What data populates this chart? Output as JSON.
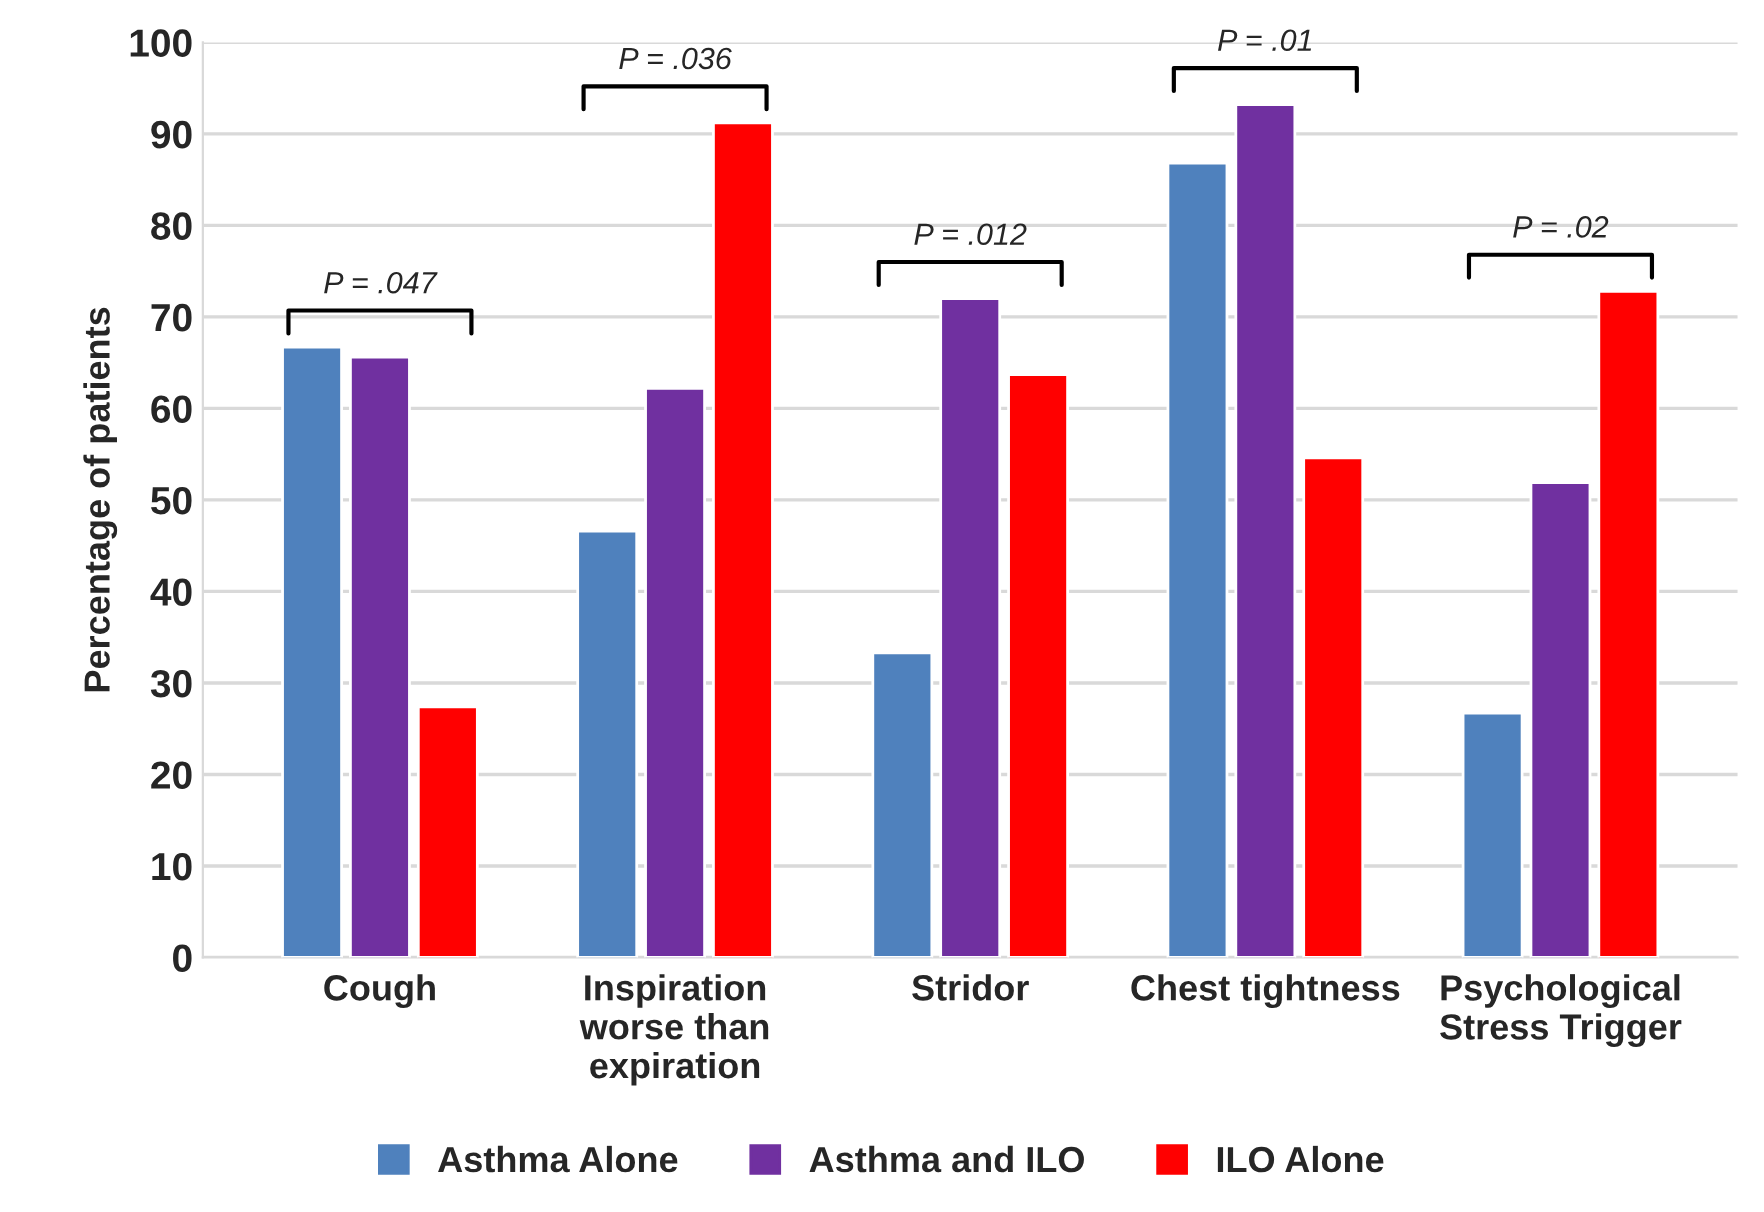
{
  "chart_data": {
    "type": "bar",
    "ylabel": "Percentage of patients",
    "categories": [
      "Cough",
      "Inspiration\nworse than\nexpiration",
      "Stridor",
      "Chest tightness",
      "Psychological\nStress Trigger"
    ],
    "series": [
      {
        "name": "Asthma Alone",
        "color": "#4f81bd",
        "values": [
          66.7,
          46.6,
          33.3,
          86.8,
          26.7
        ]
      },
      {
        "name": "Asthma and ILO",
        "color": "#7030a0",
        "values": [
          65.6,
          62.2,
          72.0,
          93.2,
          51.9
        ]
      },
      {
        "name": "ILO Alone",
        "color": "#ff0000",
        "values": [
          27.4,
          91.2,
          63.7,
          54.6,
          72.8
        ]
      }
    ],
    "ylim": [
      0,
      100
    ],
    "yticks": [
      0,
      10,
      20,
      30,
      40,
      50,
      60,
      70,
      80,
      90,
      100
    ],
    "grid": "y",
    "legend": "bottom",
    "annotations": [
      "P = .047",
      "P = .036",
      "P = .012",
      "P = .01",
      "P = .02"
    ]
  }
}
